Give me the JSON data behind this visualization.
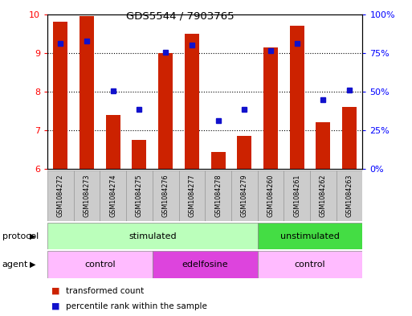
{
  "title": "GDS5544 / 7903765",
  "samples": [
    "GSM1084272",
    "GSM1084273",
    "GSM1084274",
    "GSM1084275",
    "GSM1084276",
    "GSM1084277",
    "GSM1084278",
    "GSM1084279",
    "GSM1084260",
    "GSM1084261",
    "GSM1084262",
    "GSM1084263"
  ],
  "bar_values": [
    9.8,
    9.95,
    7.4,
    6.75,
    9.0,
    9.5,
    6.45,
    6.85,
    9.15,
    9.7,
    7.2,
    7.6
  ],
  "dot_values": [
    9.25,
    9.3,
    8.02,
    7.55,
    9.02,
    9.2,
    7.25,
    7.55,
    9.05,
    9.25,
    7.8,
    8.05
  ],
  "ylim": [
    6,
    10
  ],
  "yticks_left": [
    6,
    7,
    8,
    9,
    10
  ],
  "yticks_right_vals": [
    0,
    25,
    50,
    75,
    100
  ],
  "yticks_right_labels": [
    "0%",
    "25%",
    "50%",
    "75%",
    "100%"
  ],
  "bar_color": "#cc2200",
  "dot_color": "#1111cc",
  "bar_bottom": 6,
  "protocol_groups": [
    {
      "label": "stimulated",
      "start": 0,
      "end": 8,
      "color": "#bbffbb"
    },
    {
      "label": "unstimulated",
      "start": 8,
      "end": 12,
      "color": "#44dd44"
    }
  ],
  "agent_groups": [
    {
      "label": "control",
      "start": 0,
      "end": 4,
      "color": "#ffbbff"
    },
    {
      "label": "edelfosine",
      "start": 4,
      "end": 8,
      "color": "#dd44dd"
    },
    {
      "label": "control",
      "start": 8,
      "end": 12,
      "color": "#ffbbff"
    }
  ],
  "legend_items": [
    "transformed count",
    "percentile rank within the sample"
  ],
  "legend_colors": [
    "#cc2200",
    "#1111cc"
  ],
  "xlabel_protocol": "protocol",
  "xlabel_agent": "agent",
  "background_color": "#ffffff"
}
